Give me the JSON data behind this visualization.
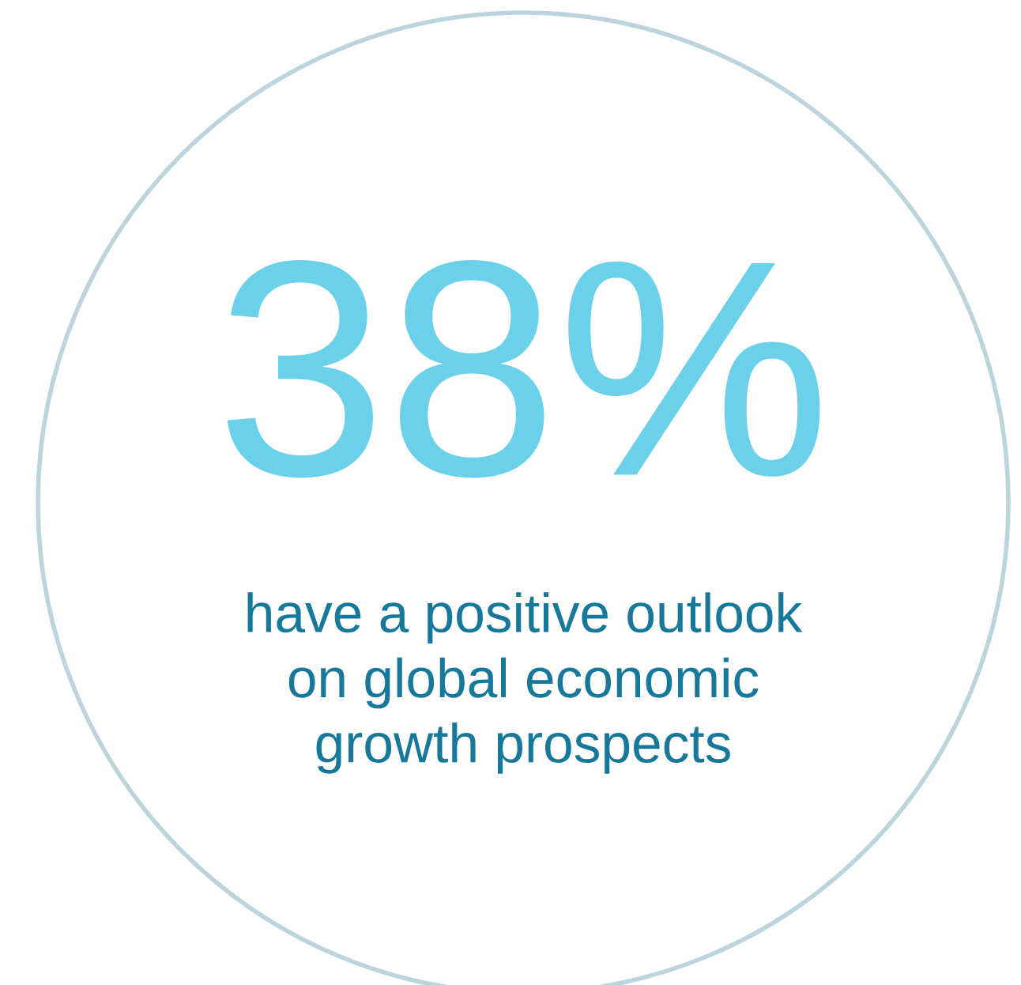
{
  "chart_data": {
    "type": "other",
    "categories": [
      null
    ],
    "values": [
      38
    ],
    "value_labels": [
      "38%"
    ],
    "colors": [
      "#6bd0ea"
    ],
    "subtitle": "have a positive outlook\non global economic\ngrowth prospects"
  }
}
